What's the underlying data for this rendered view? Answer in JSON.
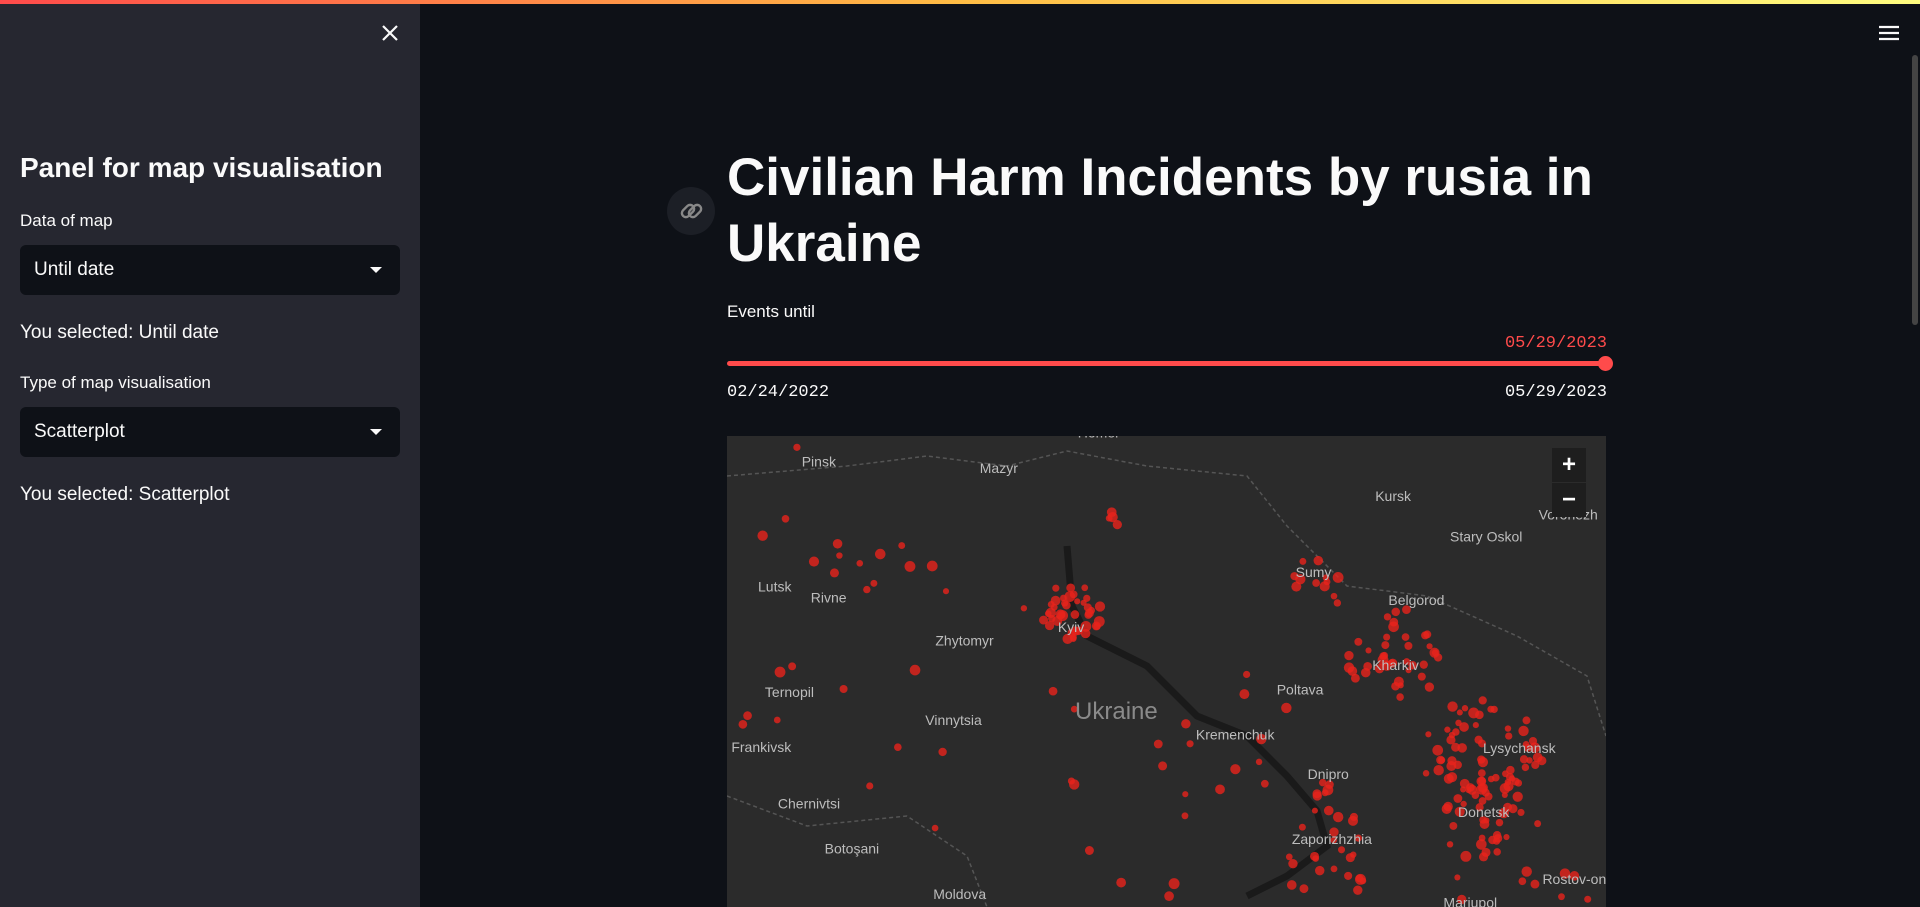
{
  "sidebar": {
    "title": "Panel for map visualisation",
    "data_label": "Data of map",
    "data_select": "Until date",
    "data_selected": "You selected: Until date",
    "type_label": "Type of map visualisation",
    "type_select": "Scatterplot",
    "type_selected": "You selected: Scatterplot"
  },
  "main": {
    "title": "Civilian Harm Incidents by rusia in Ukraine",
    "slider": {
      "label": "Events until",
      "value": "05/29/2023",
      "min": "02/24/2022",
      "max": "05/29/2023"
    },
    "map": {
      "zoom_in": "+",
      "zoom_out": "−",
      "labels": [
        "Homel",
        "Pinsk",
        "Mazyr",
        "Kursk",
        "Stary Oskol",
        "Lutsk",
        "Rivne",
        "Kyiv",
        "Sumy",
        "Belgorod",
        "Zhytomyr",
        "Kharkiv",
        "Ternopil",
        "Vinnytsia",
        "Ukraine",
        "Poltava",
        "Kremenchuk",
        "Lysychansk",
        "Frankivsk",
        "Dnipro",
        "Chernivtsi",
        "Donetsk",
        "Botoşani",
        "Zaporizhzhia",
        "Moldova",
        "Rostov-on",
        "Mariupol",
        "Voronezh"
      ]
    }
  }
}
